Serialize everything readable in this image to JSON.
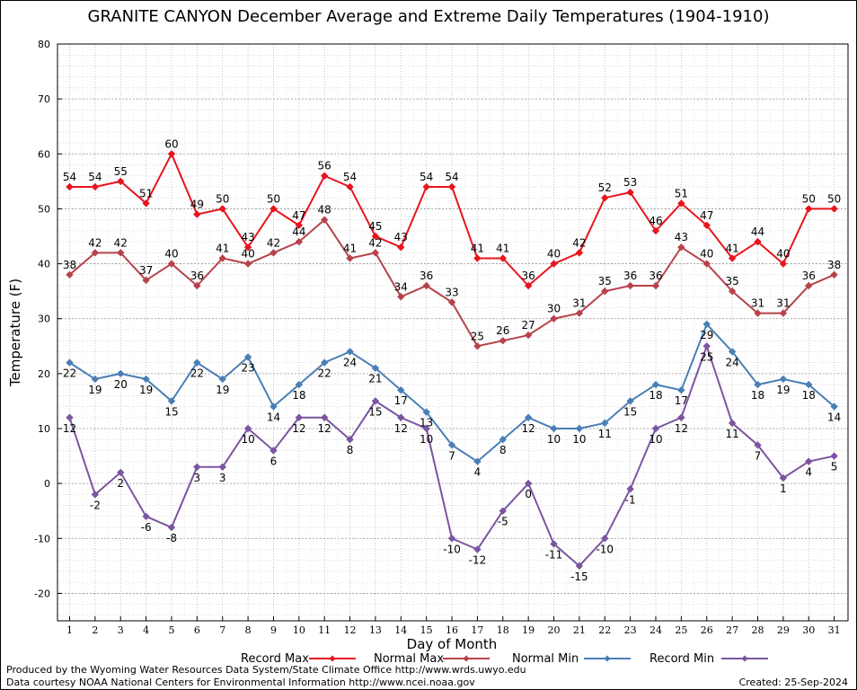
{
  "chart_data": {
    "type": "line",
    "title": "GRANITE CANYON December Average and Extreme Daily Temperatures (1904-1910)",
    "xlabel": "Day of Month",
    "ylabel": "Temperature (F)",
    "ylim": [
      -25,
      80
    ],
    "yticks": [
      -20,
      -10,
      0,
      10,
      20,
      30,
      40,
      50,
      60,
      70,
      80
    ],
    "categories": [
      "1",
      "2",
      "3",
      "4",
      "5",
      "6",
      "7",
      "8",
      "9",
      "10",
      "11",
      "12",
      "13",
      "14",
      "15",
      "16",
      "17",
      "18",
      "19",
      "20",
      "21",
      "22",
      "23",
      "24",
      "25",
      "26",
      "27",
      "28",
      "29",
      "30",
      "31"
    ],
    "grid": true,
    "legend_position": "bottom",
    "series": [
      {
        "name": "Record Max",
        "color": "#e8141e",
        "label_side": "above",
        "values": [
          54,
          54,
          55,
          51,
          60,
          49,
          50,
          43,
          50,
          47,
          56,
          54,
          45,
          43,
          54,
          54,
          41,
          41,
          36,
          40,
          42,
          52,
          53,
          46,
          51,
          47,
          41,
          44,
          40,
          50,
          50
        ]
      },
      {
        "name": "Normal Max",
        "color": "#b7424b",
        "label_side": "above",
        "values": [
          38,
          42,
          42,
          37,
          40,
          36,
          41,
          40,
          42,
          44,
          48,
          41,
          42,
          34,
          36,
          33,
          25,
          26,
          27,
          30,
          31,
          35,
          36,
          36,
          43,
          40,
          35,
          31,
          31,
          36,
          38
        ]
      },
      {
        "name": "Normal Min",
        "color": "#4a7fb5",
        "label_side": "below",
        "values": [
          22,
          19,
          20,
          19,
          15,
          22,
          19,
          23,
          14,
          18,
          22,
          24,
          21,
          17,
          13,
          7,
          4,
          8,
          12,
          10,
          10,
          11,
          15,
          18,
          17,
          29,
          24,
          18,
          19,
          18,
          14
        ]
      },
      {
        "name": "Record Min",
        "color": "#7a55a0",
        "label_side": "below",
        "values": [
          12,
          -2,
          2,
          -6,
          -8,
          3,
          3,
          10,
          6,
          12,
          12,
          8,
          15,
          12,
          10,
          -10,
          -12,
          -5,
          0,
          -11,
          -15,
          -10,
          -1,
          10,
          12,
          25,
          11,
          7,
          1,
          4,
          5
        ]
      }
    ]
  },
  "footer": {
    "produced_by": "Produced by the Wyoming Water Resources Data System/State Climate Office http://www.wrds.uwyo.edu",
    "data_courtesy": "Data courtesy NOAA National Centers for Environmental Information http://www.ncei.noaa.gov",
    "created": "Created:  25-Sep-2024"
  }
}
